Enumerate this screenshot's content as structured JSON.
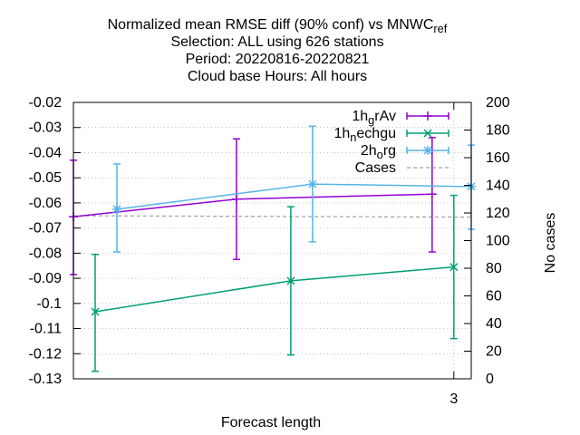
{
  "chart_data": {
    "type": "line",
    "title_lines": [
      {
        "pre": "Normalized mean RMSE diff (90% conf) vs MNWC",
        "sub": "ref",
        "post": ""
      },
      {
        "pre": "Selection: ALL using   626 stations",
        "sub": "",
        "post": ""
      },
      {
        "pre": "Period: 20220816-20220821",
        "sub": "",
        "post": ""
      },
      {
        "pre": "Cloud base    Hours:  All hours",
        "sub": "",
        "post": ""
      }
    ],
    "xlabel": "Forecast length",
    "ylabel_right": "No cases",
    "xlim": [
      1.25,
      3.08
    ],
    "ylim": [
      -0.13,
      -0.02
    ],
    "y2lim": [
      0,
      200
    ],
    "x_ticks": [
      3
    ],
    "y_ticks": [
      -0.13,
      -0.12,
      -0.11,
      -0.1,
      -0.09,
      -0.08,
      -0.07,
      -0.06,
      -0.05,
      -0.04,
      -0.03,
      -0.02
    ],
    "y_tick_labels": [
      "-0.13",
      "-0.12",
      "-0.11",
      "-0.1",
      "-0.09",
      "-0.08",
      "-0.07",
      "-0.06",
      "-0.05",
      "-0.04",
      "-0.03",
      "-0.02"
    ],
    "y2_ticks": [
      0,
      20,
      40,
      60,
      80,
      100,
      120,
      140,
      160,
      180,
      200
    ],
    "grid": true,
    "legend_position": "top-right",
    "series": [
      {
        "name_pre": "1h",
        "name_sub": "g",
        "name_post": "rAv",
        "color": "#9400d3",
        "marker": "plus",
        "x": [
          1.25,
          2.0,
          2.9
        ],
        "y": [
          -0.0655,
          -0.0585,
          -0.0565
        ],
        "err_low": [
          -0.0885,
          -0.0825,
          -0.0795
        ],
        "err_high": [
          -0.043,
          -0.0345,
          -0.034
        ]
      },
      {
        "name_pre": "1h",
        "name_sub": "n",
        "name_post": "echgu",
        "color": "#009e73",
        "marker": "x",
        "x": [
          1.35,
          2.25,
          3.0
        ],
        "y": [
          -0.1033,
          -0.091,
          -0.0855
        ],
        "err_low": [
          -0.127,
          -0.1205,
          -0.114
        ],
        "err_high": [
          -0.0805,
          -0.0615,
          -0.057
        ]
      },
      {
        "name_pre": "2h",
        "name_sub": "o",
        "name_post": "rg",
        "color": "#56b4e9",
        "marker": "star",
        "x": [
          1.45,
          2.35,
          3.08
        ],
        "y": [
          -0.0625,
          -0.0525,
          -0.0535
        ],
        "err_low": [
          -0.0795,
          -0.0755,
          -0.0705
        ],
        "err_high": [
          -0.0445,
          -0.0295,
          -0.037
        ]
      }
    ],
    "cases": {
      "name": "Cases",
      "color": "#a0a0a0",
      "x": [
        1.25,
        3.08
      ],
      "y": [
        118,
        117
      ]
    }
  }
}
